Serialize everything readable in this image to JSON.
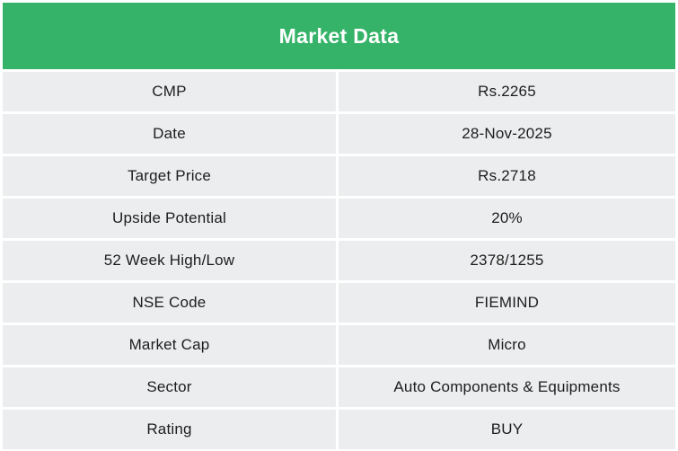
{
  "table": {
    "title": "Market Data",
    "rows": [
      {
        "label": "CMP",
        "value": "Rs.2265"
      },
      {
        "label": "Date",
        "value": "28-Nov-2025"
      },
      {
        "label": "Target Price",
        "value": "Rs.2718"
      },
      {
        "label": "Upside Potential",
        "value": "20%"
      },
      {
        "label": "52 Week High/Low",
        "value": "2378/1255"
      },
      {
        "label": "NSE Code",
        "value": "FIEMIND"
      },
      {
        "label": "Market Cap",
        "value": "Micro"
      },
      {
        "label": "Sector",
        "value": "Auto Components & Equipments"
      },
      {
        "label": "Rating",
        "value": "BUY"
      }
    ],
    "colors": {
      "header_bg": "#35b368",
      "header_text": "#ffffff",
      "row_bg": "#ebedee",
      "row_text": "#1d1d1d",
      "gap": "#ffffff"
    }
  }
}
